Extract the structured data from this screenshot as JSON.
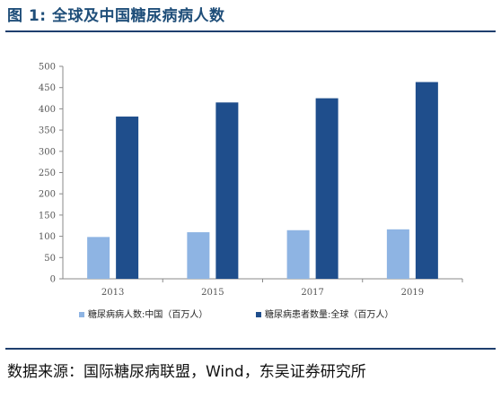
{
  "figure_title": "图 1: 全球及中国糖尿病病人数",
  "source": "数据来源：国际糖尿病联盟，Wind，东吴证券研究所",
  "colors": {
    "china": "#8eb4e3",
    "global": "#1f4e8c",
    "accent": "#1f4e79"
  },
  "chart_data": {
    "type": "bar",
    "categories": [
      "2013",
      "2015",
      "2017",
      "2019"
    ],
    "series": [
      {
        "name": "糖尿病病人数:中国（百万人）",
        "values": [
          98.4,
          109.6,
          114.4,
          116.4
        ],
        "color": "#8eb4e3"
      },
      {
        "name": "糖尿病患者数量:全球（百万人）",
        "values": [
          381.8,
          415.0,
          424.9,
          463.0
        ],
        "color": "#1f4e8c"
      }
    ],
    "ylim": [
      0,
      500
    ],
    "yticks": [
      "0",
      "50",
      "100",
      "150",
      "200",
      "250",
      "300",
      "350",
      "400",
      "450",
      "500"
    ],
    "xlabel": "",
    "ylabel": "",
    "grid": false,
    "legend": "bottom"
  }
}
